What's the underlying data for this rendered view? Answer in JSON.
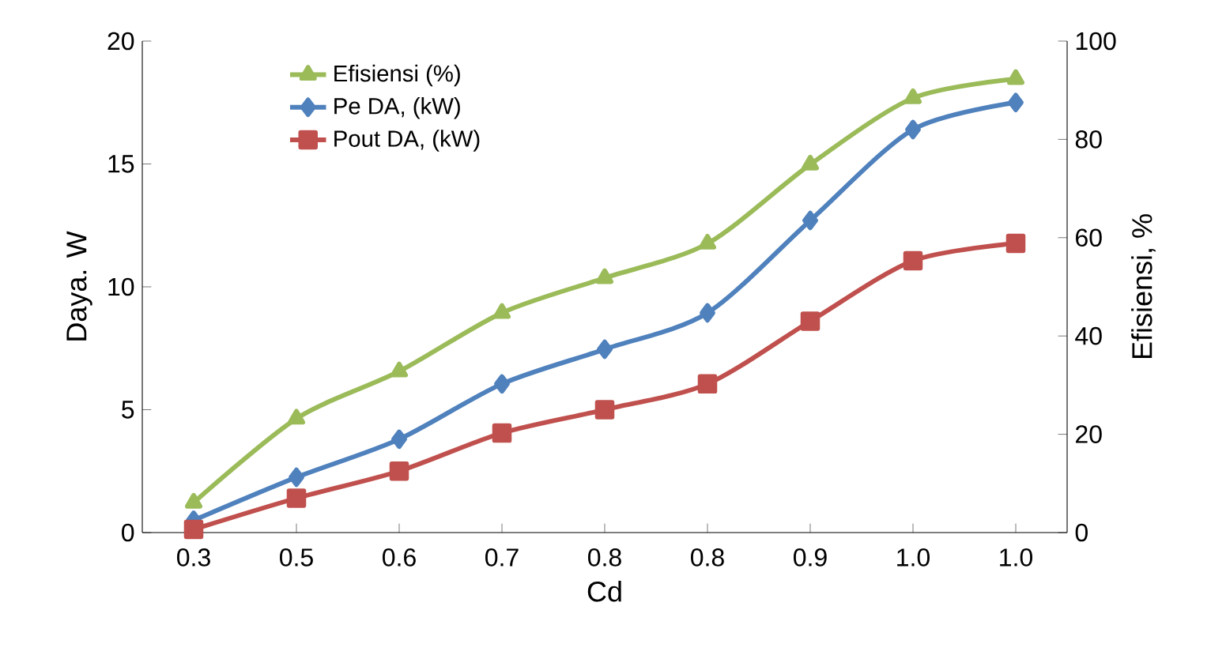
{
  "chart_data": {
    "type": "line",
    "xlabel": "Cd",
    "ylabel": "Daya. W",
    "y2label": "Efisiensi, %",
    "categories": [
      "0.3",
      "0.5",
      "0.6",
      "0.7",
      "0.8",
      "0.8",
      "0.9",
      "1.0",
      "1.0"
    ],
    "series": [
      {
        "name": "Efisiensi (%)",
        "color": "#9bbb59",
        "marker": "triangle",
        "axis": "y2",
        "values": [
          6.1,
          23.2,
          32.8,
          44.7,
          51.8,
          58.8,
          74.9,
          88.4,
          92.3
        ]
      },
      {
        "name": "Pe DA, (kW)",
        "color": "#4f81bd",
        "marker": "diamond",
        "values": [
          0.5,
          2.25,
          3.8,
          6.05,
          7.46,
          8.94,
          12.7,
          16.4,
          17.5
        ]
      },
      {
        "name": "Pout DA, (kW)",
        "color": "#c0504d",
        "marker": "square",
        "values": [
          0.13,
          1.4,
          2.5,
          4.05,
          5.0,
          6.05,
          8.6,
          11.06,
          11.77
        ]
      }
    ],
    "ylim": [
      0,
      20
    ],
    "yticks": [
      0,
      5,
      10,
      15,
      20
    ],
    "y2lim": [
      0,
      100
    ],
    "y2ticks": [
      0,
      20,
      40,
      60,
      80,
      100
    ],
    "grid": false,
    "legend": "top left",
    "line_style": "solid"
  }
}
